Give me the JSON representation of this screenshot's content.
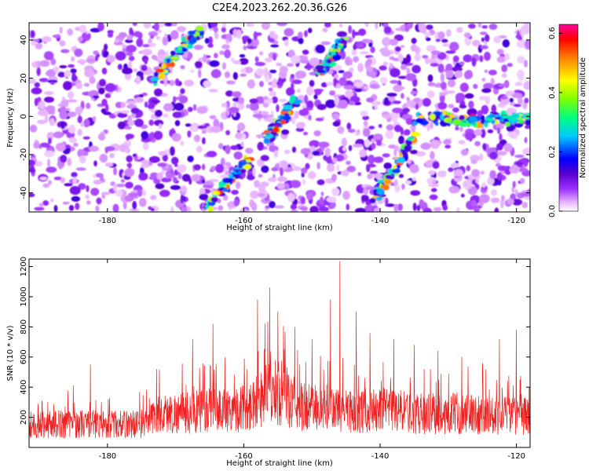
{
  "figure_title": "C2E4.2023.262.20.36.G26",
  "chart_data": [
    {
      "type": "heatmap",
      "xlabel": "Height of straight line (km)",
      "ylabel": "Frequency (Hz)",
      "xlim": [
        -191.5,
        -118
      ],
      "ylim": [
        -50,
        49
      ],
      "xticks": [
        -180,
        -160,
        -140,
        -120
      ],
      "yticks": [
        -40,
        -20,
        0,
        20,
        40
      ],
      "colorbar": {
        "label": "Normalized spectral amplitude",
        "range": [
          0,
          0.63
        ],
        "ticks": [
          0.0,
          0.2,
          0.4,
          0.6
        ],
        "colors": [
          "#ffffff",
          "#e6b0ff",
          "#9b30ff",
          "#5a00d0",
          "#0000ff",
          "#00c8ff",
          "#00ff80",
          "#80ff00",
          "#ffff00",
          "#ff8000",
          "#ff0000",
          "#ff00a0"
        ]
      },
      "ridges": [
        {
          "x": [
            -166,
            -164.2,
            -162.5,
            -161,
            -160,
            -159.3
          ],
          "y": [
            -50,
            -42,
            -35,
            -29,
            -25,
            -23
          ]
        },
        {
          "x": [
            -173,
            -171.6,
            -170.3,
            -169,
            -167.6,
            -166.3
          ],
          "y": [
            18,
            25,
            31,
            36,
            41,
            45
          ]
        },
        {
          "x": [
            -156.5,
            -155.5,
            -154.6,
            -153.5,
            -152.3
          ],
          "y": [
            -12,
            -7,
            -2,
            3,
            9
          ]
        },
        {
          "x": [
            -149,
            -147.5,
            -146.3,
            -145.3
          ],
          "y": [
            23,
            29,
            35,
            40
          ]
        },
        {
          "x": [
            -141,
            -139.5,
            -138,
            -136.5,
            -135
          ],
          "y": [
            -44,
            -36,
            -29,
            -20,
            -10
          ]
        },
        {
          "x": [
            -135,
            -132,
            -129,
            -126,
            -123,
            -120,
            -118
          ],
          "y": [
            -2,
            -1,
            0,
            -3,
            -1,
            -2,
            0
          ]
        }
      ]
    },
    {
      "type": "line",
      "xlabel": "Height of straight line (km)",
      "ylabel": "SNR (10 * v/v)",
      "xlim": [
        -191.5,
        -118
      ],
      "ylim": [
        0,
        1250
      ],
      "xticks": [
        -180,
        -160,
        -140,
        -120
      ],
      "yticks": [
        200,
        400,
        600,
        800,
        1000,
        1200
      ],
      "color": "#ee2020",
      "envelope": {
        "x": [
          -191.5,
          -184,
          -178,
          -174,
          -173,
          -168,
          -165,
          -160,
          -157,
          -155,
          -152,
          -148,
          -146,
          -140,
          -134,
          -128,
          -122,
          -118
        ],
        "y": [
          170,
          175,
          170,
          180,
          240,
          260,
          270,
          290,
          380,
          420,
          300,
          290,
          270,
          270,
          250,
          250,
          240,
          230
        ]
      },
      "spikes": [
        {
          "x": -185,
          "y": 410
        },
        {
          "x": -182.5,
          "y": 550
        },
        {
          "x": -172.8,
          "y": 520
        },
        {
          "x": -167.5,
          "y": 720
        },
        {
          "x": -164.5,
          "y": 820
        },
        {
          "x": -158,
          "y": 980
        },
        {
          "x": -156.2,
          "y": 1060
        },
        {
          "x": -155,
          "y": 900
        },
        {
          "x": -152.5,
          "y": 800
        },
        {
          "x": -150,
          "y": 720
        },
        {
          "x": -147.3,
          "y": 980
        },
        {
          "x": -145.9,
          "y": 1235
        },
        {
          "x": -143.5,
          "y": 900
        },
        {
          "x": -141.5,
          "y": 760
        },
        {
          "x": -138,
          "y": 720
        },
        {
          "x": -135,
          "y": 680
        },
        {
          "x": -131.5,
          "y": 640
        },
        {
          "x": -128,
          "y": 600
        },
        {
          "x": -125,
          "y": 560
        },
        {
          "x": -122.5,
          "y": 720
        },
        {
          "x": -120,
          "y": 780
        }
      ]
    }
  ]
}
